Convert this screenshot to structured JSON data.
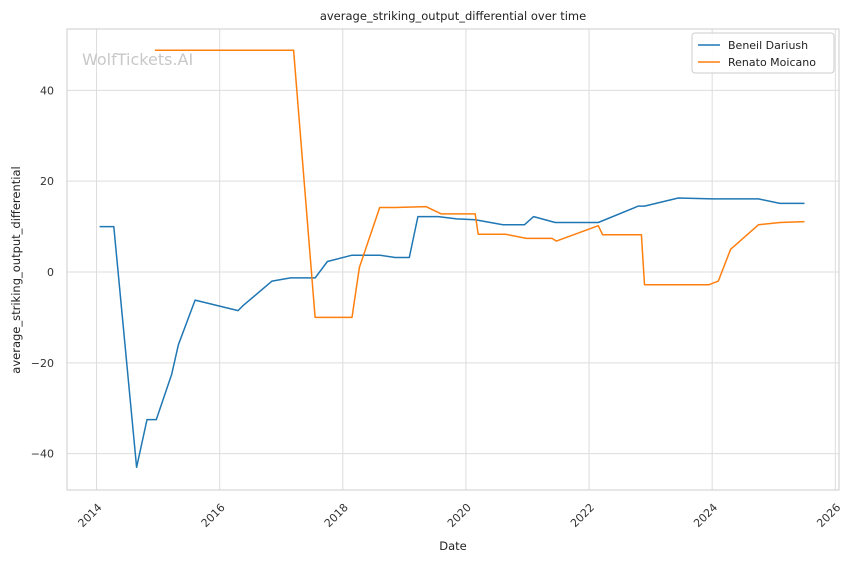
{
  "chart_data": {
    "type": "line",
    "title": "average_striking_output_differential over time",
    "xlabel": "Date",
    "ylabel": "average_striking_output_differential",
    "watermark": "WolfTickets.AI",
    "xlim": [
      2013.52,
      2026.06
    ],
    "ylim": [
      -48,
      53.5
    ],
    "x_ticks": [
      2014,
      2016,
      2018,
      2020,
      2022,
      2024,
      2026
    ],
    "y_ticks": [
      -40,
      -20,
      0,
      20,
      40
    ],
    "grid": true,
    "legend_position": "top-right",
    "series": [
      {
        "name": "Beneil Dariush",
        "color": "#1f77b4",
        "x": [
          2014.05,
          2014.28,
          2014.65,
          2014.82,
          2014.97,
          2015.22,
          2015.33,
          2015.6,
          2016.3,
          2016.37,
          2016.85,
          2017.15,
          2017.55,
          2017.75,
          2018.15,
          2018.6,
          2018.85,
          2019.08,
          2019.22,
          2019.55,
          2019.85,
          2020.15,
          2020.6,
          2020.95,
          2021.1,
          2021.45,
          2021.8,
          2022.15,
          2022.8,
          2022.9,
          2023.45,
          2024.0,
          2024.75,
          2025.1,
          2025.5
        ],
        "y": [
          10,
          10,
          -43,
          -32.5,
          -32.5,
          -22.5,
          -16,
          -6.2,
          -8.5,
          -7.5,
          -2,
          -1.3,
          -1.3,
          2.3,
          3.7,
          3.7,
          3.2,
          3.2,
          12.2,
          12.2,
          11.7,
          11.5,
          10.4,
          10.4,
          12.2,
          10.9,
          10.9,
          10.9,
          14.5,
          14.5,
          16.3,
          16.1,
          16.1,
          15.1,
          15.1
        ]
      },
      {
        "name": "Renato Moicano",
        "color": "#ff7f0e",
        "x": [
          2014.95,
          2017.2,
          2017.55,
          2018.15,
          2018.27,
          2018.6,
          2018.85,
          2019.35,
          2019.6,
          2020.15,
          2020.2,
          2020.65,
          2020.98,
          2021.4,
          2021.47,
          2022.15,
          2022.22,
          2022.85,
          2022.9,
          2023.35,
          2023.95,
          2024.1,
          2024.3,
          2024.75,
          2025.1,
          2025.5
        ],
        "y": [
          48.8,
          48.8,
          -10,
          -10,
          1,
          14.2,
          14.2,
          14.4,
          12.8,
          12.8,
          8.3,
          8.3,
          7.4,
          7.4,
          6.8,
          10.2,
          8.2,
          8.2,
          -2.8,
          -2.8,
          -2.8,
          -2,
          5,
          10.4,
          10.9,
          11.1
        ]
      }
    ]
  }
}
